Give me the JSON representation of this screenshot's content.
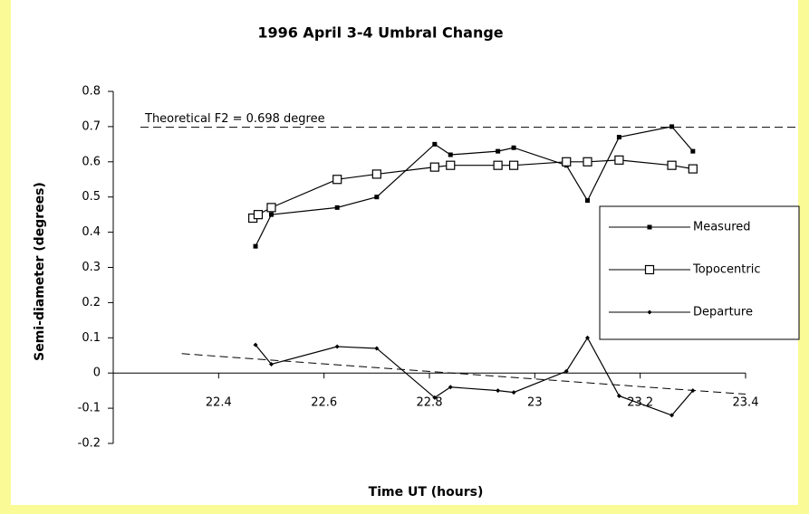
{
  "chart_data": {
    "type": "line",
    "title": "1996 April 3-4 Umbral Change",
    "xlabel": "Time UT (hours)",
    "ylabel": "Semi-diameter (degrees)",
    "xlim": [
      22.2,
      23.4
    ],
    "xticks": [
      22.4,
      22.6,
      22.8,
      23,
      23.2,
      23.4
    ],
    "ylim": [
      -0.2,
      0.8
    ],
    "yticks": [
      -0.2,
      -0.1,
      0,
      0.1,
      0.2,
      0.3,
      0.4,
      0.5,
      0.6,
      0.7,
      0.8
    ],
    "grid": false,
    "legend": "right",
    "reference_line": {
      "value": 0.698,
      "label": "Theoretical F2 = 0.698 degree"
    },
    "trend_line": {
      "x": [
        22.33,
        23.4
      ],
      "y": [
        0.055,
        -0.06
      ]
    },
    "series": [
      {
        "name": "Measured",
        "color": "#000000",
        "marker": "filled-square",
        "x": [
          22.47,
          22.5,
          22.625,
          22.7,
          22.81,
          22.84,
          22.93,
          22.96,
          23.06,
          23.1,
          23.16,
          23.26,
          23.3
        ],
        "values": [
          0.36,
          0.45,
          0.47,
          0.5,
          0.65,
          0.62,
          0.63,
          0.64,
          0.59,
          0.49,
          0.67,
          0.7,
          0.63
        ]
      },
      {
        "name": "Topocentric",
        "color": "#000000",
        "marker": "open-square",
        "x": [
          22.465,
          22.475,
          22.5,
          22.625,
          22.7,
          22.81,
          22.84,
          22.93,
          22.96,
          23.06,
          23.1,
          23.16,
          23.26,
          23.3
        ],
        "values": [
          0.44,
          0.45,
          0.47,
          0.55,
          0.565,
          0.585,
          0.59,
          0.59,
          0.59,
          0.6,
          0.6,
          0.605,
          0.59,
          0.58
        ]
      },
      {
        "name": "Departure",
        "color": "#000000",
        "marker": "diamond",
        "x": [
          22.47,
          22.5,
          22.625,
          22.7,
          22.81,
          22.84,
          22.93,
          22.96,
          23.06,
          23.1,
          23.16,
          23.26,
          23.3
        ],
        "values": [
          0.08,
          0.025,
          0.075,
          0.07,
          -0.07,
          -0.04,
          -0.05,
          -0.055,
          0.005,
          0.1,
          -0.065,
          -0.12,
          -0.05
        ]
      }
    ]
  }
}
